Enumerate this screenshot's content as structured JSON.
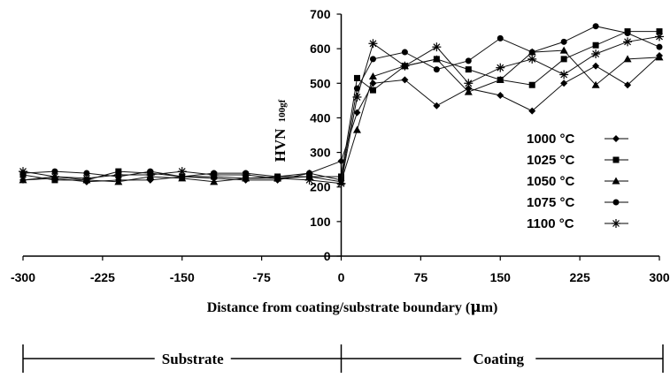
{
  "chart_data": {
    "type": "line",
    "title": "",
    "xlabel": "Distance from coating/substrate boundary (",
    "xlabel_unit": "m)",
    "xlabel_mu": "μ",
    "ylabel": "HVN",
    "ylabel_sub": "100gf",
    "xlim": [
      -300,
      300
    ],
    "ylim": [
      0,
      700
    ],
    "xticks": [
      "-300",
      "-225",
      "-150",
      "-75",
      "0",
      "75",
      "150",
      "225",
      "300"
    ],
    "yticks": [
      "0",
      "100",
      "200",
      "300",
      "400",
      "500",
      "600",
      "700"
    ],
    "legend_position": "right",
    "series": [
      {
        "name": "1000 °C",
        "marker": "diamond",
        "x": [
          -300,
          -270,
          -240,
          -210,
          -180,
          -150,
          -120,
          -90,
          -60,
          -30,
          0,
          15,
          30,
          60,
          90,
          120,
          150,
          180,
          210,
          240,
          270,
          300
        ],
        "y": [
          220,
          225,
          215,
          220,
          220,
          230,
          225,
          220,
          220,
          240,
          275,
          415,
          500,
          510,
          435,
          485,
          465,
          420,
          500,
          550,
          495,
          580
        ]
      },
      {
        "name": "1025 °C",
        "marker": "square",
        "x": [
          -300,
          -270,
          -240,
          -210,
          -180,
          -150,
          -120,
          -90,
          -60,
          -30,
          0,
          15,
          30,
          60,
          90,
          120,
          150,
          180,
          210,
          240,
          270,
          300
        ],
        "y": [
          235,
          220,
          220,
          245,
          240,
          230,
          230,
          225,
          230,
          230,
          230,
          515,
          480,
          550,
          570,
          540,
          510,
          495,
          570,
          610,
          650,
          650
        ]
      },
      {
        "name": "1050 °C",
        "marker": "triangle",
        "x": [
          -300,
          -270,
          -240,
          -210,
          -180,
          -150,
          -120,
          -90,
          -60,
          -30,
          0,
          15,
          30,
          60,
          90,
          120,
          150,
          180,
          210,
          240,
          270,
          300
        ],
        "y": [
          220,
          230,
          220,
          215,
          230,
          225,
          215,
          225,
          225,
          230,
          215,
          365,
          520,
          550,
          570,
          475,
          510,
          590,
          595,
          495,
          570,
          575
        ]
      },
      {
        "name": "1075 °C",
        "marker": "circle",
        "x": [
          -300,
          -270,
          -240,
          -210,
          -180,
          -150,
          -120,
          -90,
          -60,
          -30,
          0,
          15,
          30,
          60,
          90,
          120,
          150,
          180,
          210,
          240,
          270,
          300
        ],
        "y": [
          240,
          245,
          240,
          230,
          245,
          230,
          240,
          240,
          230,
          240,
          220,
          485,
          570,
          590,
          540,
          565,
          630,
          590,
          620,
          665,
          645,
          605
        ]
      },
      {
        "name": "1100 °C",
        "marker": "star",
        "x": [
          -300,
          -270,
          -240,
          -210,
          -180,
          -150,
          -120,
          -90,
          -60,
          -30,
          0,
          15,
          30,
          60,
          90,
          120,
          150,
          180,
          210,
          240,
          270,
          300
        ],
        "y": [
          245,
          230,
          225,
          235,
          235,
          245,
          235,
          235,
          225,
          220,
          210,
          460,
          615,
          550,
          605,
          500,
          545,
          570,
          525,
          585,
          620,
          635
        ]
      }
    ],
    "regions": [
      {
        "label": "Substrate",
        "from": -300,
        "to": 0
      },
      {
        "label": "Coating",
        "from": 0,
        "to": 300
      }
    ]
  }
}
